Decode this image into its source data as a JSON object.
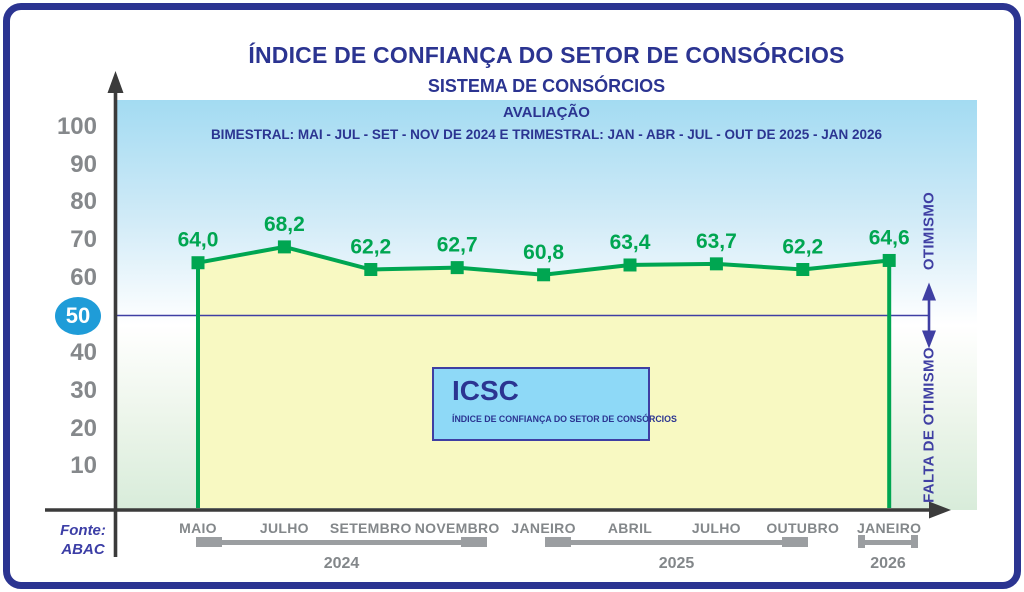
{
  "colors": {
    "indigo": "#2b3491",
    "line_green": "#00a651",
    "fill_yellow": "#f8f9c2",
    "axis_dark": "#3b3b3b",
    "tick_gray": "#85888b",
    "bracket_gray": "#9b9ea1",
    "highlight_blue": "#1f9cd8",
    "ref_indigo": "#3f3fa3",
    "box_blue": "#8ed9f7",
    "bg_top": "#a3dbf2",
    "bg_bottom": "#d8ecda",
    "source_blue": "#3c3ea6",
    "border_indigo": "#2b3491"
  },
  "chart_data": {
    "type": "line",
    "title": "ÍNDICE DE CONFIANÇA DO SETOR DE CONSÓRCIOS",
    "subtitle": "SISTEMA DE CONSÓRCIOS",
    "evaluation_title": "AVALIAÇÃO",
    "evaluation_detail": "BIMESTRAL: MAI - JUL - SET - NOV DE 2024 E TRIMESTRAL: JAN - ABR - JUL - OUT DE 2025 - JAN 2026",
    "categories": [
      "MAIO",
      "JULHO",
      "SETEMBRO",
      "NOVEMBRO",
      "JANEIRO",
      "ABRIL",
      "JULHO",
      "OUTUBRO",
      "JANEIRO"
    ],
    "values": [
      64.0,
      68.2,
      62.2,
      62.7,
      60.8,
      63.4,
      63.7,
      62.2,
      64.6
    ],
    "value_labels": [
      "64,0",
      "68,2",
      "62,2",
      "62,7",
      "60,8",
      "63,4",
      "63,7",
      "62,2",
      "64,6"
    ],
    "ylim": [
      0,
      100
    ],
    "yticks": [
      10,
      20,
      30,
      40,
      50,
      60,
      70,
      80,
      90,
      100
    ],
    "highlight_tick": 50,
    "reference_line": 50,
    "grid": false,
    "area_fill": true,
    "legend_position": "none",
    "zone_labels": {
      "above_reference": "OTIMISMO",
      "below_reference": "FALTA DE OTIMISMO"
    },
    "annotation_box": {
      "acronym": "ICSC",
      "caption": "ÍNDICE DE CONFIANÇA DO SETOR DE CONSÓRCIOS"
    },
    "year_groups": [
      {
        "label": "2024",
        "from_index": 0,
        "to_index": 3,
        "style": "blocks"
      },
      {
        "label": "2025",
        "from_index": 4,
        "to_index": 7,
        "style": "blocks"
      },
      {
        "label": "2026",
        "from_index": 8,
        "to_index": 8,
        "style": "square"
      }
    ]
  },
  "footer": {
    "source_label": "Fonte:",
    "source_name": "ABAC"
  }
}
